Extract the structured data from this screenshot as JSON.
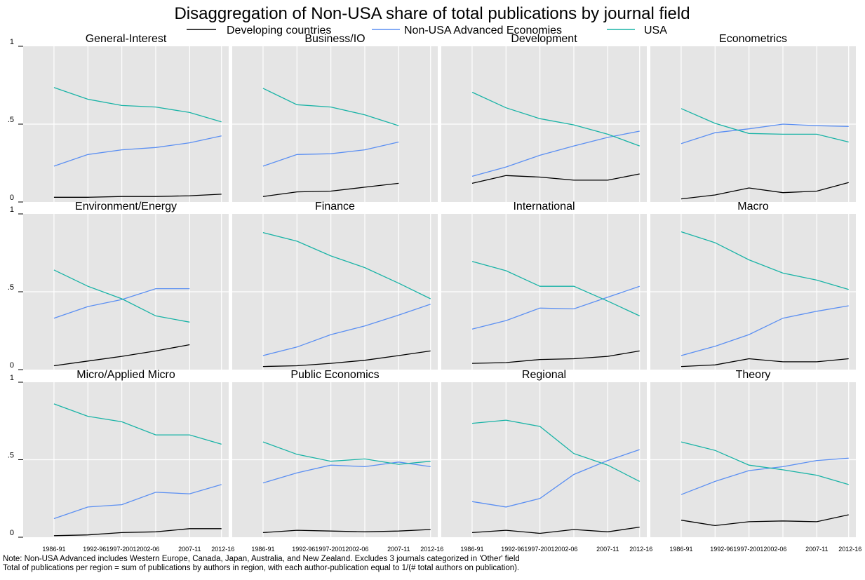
{
  "chart_data": {
    "type": "line",
    "title": "Disaggregation of Non-USA share of total  publications by journal field",
    "legend": {
      "placement": "top",
      "entries": [
        {
          "name": "Developing countries",
          "color": "#000000"
        },
        {
          "name": "Non-USA Advanced Economies",
          "color": "#5b8ff2"
        },
        {
          "name": "USA",
          "color": "#19b3a6"
        }
      ]
    },
    "ylim": [
      0,
      1
    ],
    "yticks": [
      {
        "value": 0,
        "label": "0"
      },
      {
        "value": 0.5,
        "label": ".5"
      },
      {
        "value": 1,
        "label": "1"
      }
    ],
    "x_categories": [
      "1986-91",
      "1992-96",
      "1997-2001",
      "2002-06",
      "2007-11",
      "2012-16"
    ],
    "x_tick_labels": [
      "1986-91",
      "1992-961997-20012002-06",
      "2007-11",
      "2012-16"
    ],
    "grid": true,
    "layout": "3x4 small multiples",
    "panels": [
      {
        "title": "General-Interest",
        "series": [
          {
            "name": "Developing countries",
            "values": [
              0.03,
              0.03,
              0.035,
              0.035,
              0.04,
              0.05
            ]
          },
          {
            "name": "Non-USA Advanced Economies",
            "values": [
              0.23,
              0.305,
              0.335,
              0.35,
              0.38,
              0.425
            ]
          },
          {
            "name": "USA",
            "values": [
              0.735,
              0.66,
              0.62,
              0.61,
              0.575,
              0.515
            ]
          }
        ]
      },
      {
        "title": "Business/IO",
        "series": [
          {
            "name": "Developing countries",
            "values": [
              0.035,
              0.065,
              0.07,
              0.095,
              0.12,
              null
            ]
          },
          {
            "name": "Non-USA Advanced Economies",
            "values": [
              0.23,
              0.305,
              0.31,
              0.335,
              0.385,
              null
            ]
          },
          {
            "name": "USA",
            "values": [
              0.73,
              0.625,
              0.61,
              0.56,
              0.49,
              null
            ]
          }
        ]
      },
      {
        "title": "Development",
        "series": [
          {
            "name": "Developing countries",
            "values": [
              0.12,
              0.17,
              0.16,
              0.14,
              0.14,
              0.18
            ]
          },
          {
            "name": "Non-USA Advanced Economies",
            "values": [
              0.165,
              0.225,
              0.3,
              0.36,
              0.415,
              0.455
            ]
          },
          {
            "name": "USA",
            "values": [
              0.705,
              0.605,
              0.535,
              0.495,
              0.435,
              0.36
            ]
          }
        ]
      },
      {
        "title": "Econometrics",
        "series": [
          {
            "name": "Developing countries",
            "values": [
              0.02,
              0.045,
              0.09,
              0.06,
              0.07,
              0.125
            ]
          },
          {
            "name": "Non-USA Advanced Economies",
            "values": [
              0.375,
              0.445,
              0.47,
              0.5,
              0.49,
              0.485
            ]
          },
          {
            "name": "USA",
            "values": [
              0.6,
              0.505,
              0.44,
              0.435,
              0.435,
              0.385
            ]
          }
        ]
      },
      {
        "title": "Environment/Energy",
        "series": [
          {
            "name": "Developing countries",
            "values": [
              0.025,
              0.055,
              0.085,
              0.12,
              0.16,
              null
            ]
          },
          {
            "name": "Non-USA Advanced Economies",
            "values": [
              0.33,
              0.405,
              0.45,
              0.52,
              0.52,
              null
            ]
          },
          {
            "name": "USA",
            "values": [
              0.64,
              0.535,
              0.455,
              0.345,
              0.305,
              null
            ]
          }
        ]
      },
      {
        "title": "Finance",
        "series": [
          {
            "name": "Developing countries",
            "values": [
              0.02,
              0.025,
              0.04,
              0.06,
              0.09,
              0.12
            ]
          },
          {
            "name": "Non-USA Advanced Economies",
            "values": [
              0.09,
              0.145,
              0.225,
              0.28,
              0.35,
              0.42
            ]
          },
          {
            "name": "USA",
            "values": [
              0.88,
              0.825,
              0.73,
              0.655,
              0.555,
              0.455
            ]
          }
        ]
      },
      {
        "title": "International",
        "series": [
          {
            "name": "Developing countries",
            "values": [
              0.04,
              0.045,
              0.065,
              0.07,
              0.085,
              0.12
            ]
          },
          {
            "name": "Non-USA Advanced Economies",
            "values": [
              0.26,
              0.315,
              0.395,
              0.39,
              0.465,
              0.535
            ]
          },
          {
            "name": "USA",
            "values": [
              0.695,
              0.635,
              0.535,
              0.535,
              0.44,
              0.345
            ]
          }
        ]
      },
      {
        "title": "Macro",
        "series": [
          {
            "name": "Developing countries",
            "values": [
              0.02,
              0.03,
              0.07,
              0.05,
              0.05,
              0.07
            ]
          },
          {
            "name": "Non-USA Advanced Economies",
            "values": [
              0.09,
              0.15,
              0.225,
              0.33,
              0.375,
              0.41
            ]
          },
          {
            "name": "USA",
            "values": [
              0.885,
              0.815,
              0.705,
              0.62,
              0.575,
              0.515
            ]
          }
        ]
      },
      {
        "title": "Micro/Applied Micro",
        "series": [
          {
            "name": "Developing countries",
            "values": [
              0.01,
              0.015,
              0.03,
              0.035,
              0.055,
              0.055
            ]
          },
          {
            "name": "Non-USA Advanced Economies",
            "values": [
              0.12,
              0.195,
              0.21,
              0.29,
              0.28,
              0.34
            ]
          },
          {
            "name": "USA",
            "values": [
              0.86,
              0.78,
              0.745,
              0.66,
              0.66,
              0.6
            ]
          }
        ]
      },
      {
        "title": "Public Economics",
        "series": [
          {
            "name": "Developing countries",
            "values": [
              0.03,
              0.045,
              0.04,
              0.035,
              0.04,
              0.05
            ]
          },
          {
            "name": "Non-USA Advanced Economies",
            "values": [
              0.35,
              0.415,
              0.465,
              0.455,
              0.485,
              0.455
            ]
          },
          {
            "name": "USA",
            "values": [
              0.615,
              0.535,
              0.49,
              0.505,
              0.47,
              0.49
            ]
          }
        ]
      },
      {
        "title": "Regional",
        "series": [
          {
            "name": "Developing countries",
            "values": [
              0.03,
              0.045,
              0.025,
              0.05,
              0.035,
              0.065
            ]
          },
          {
            "name": "Non-USA Advanced Economies",
            "values": [
              0.23,
              0.195,
              0.25,
              0.405,
              0.495,
              0.565
            ]
          },
          {
            "name": "USA",
            "values": [
              0.735,
              0.755,
              0.715,
              0.54,
              0.465,
              0.36
            ]
          }
        ]
      },
      {
        "title": "Theory",
        "series": [
          {
            "name": "Developing countries",
            "values": [
              0.11,
              0.075,
              0.1,
              0.105,
              0.1,
              0.145
            ]
          },
          {
            "name": "Non-USA Advanced Economies",
            "values": [
              0.275,
              0.36,
              0.43,
              0.455,
              0.495,
              0.51
            ]
          },
          {
            "name": "USA",
            "values": [
              0.615,
              0.56,
              0.465,
              0.435,
              0.4,
              0.34
            ]
          }
        ]
      }
    ]
  },
  "notes": [
    "Note: Non-USA Advanced includes Western Europe, Canada, Japan, Australia, and New Zealand. Excludes 3 journals categorized in 'Other' field",
    "Total of publications per region = sum of publications by authors in region, with each author-publication equal to 1/(# total authors on publication)."
  ]
}
